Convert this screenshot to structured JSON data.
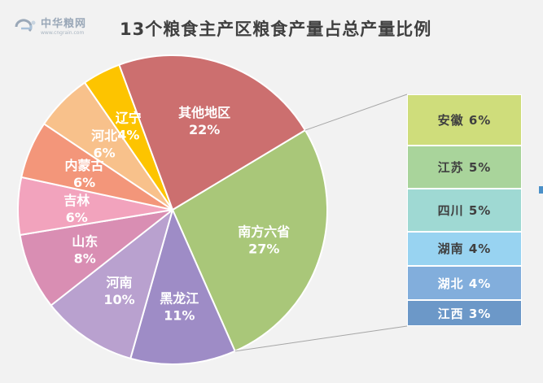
{
  "logo": {
    "name": "中华粮网",
    "url": "www.cngrain.com"
  },
  "chart_data": {
    "type": "pie",
    "title": "13个粮食主产区粮食产量占总产量比例",
    "slices": [
      {
        "label": "南方六省",
        "pct_text": "27%",
        "value": 27,
        "color": "#a9c779"
      },
      {
        "label": "黑龙江",
        "pct_text": "11%",
        "value": 11,
        "color": "#9e8cc6"
      },
      {
        "label": "河南",
        "pct_text": "10%",
        "value": 10,
        "color": "#b9a1cf"
      },
      {
        "label": "山东",
        "pct_text": "8%",
        "value": 8,
        "color": "#d98eb3"
      },
      {
        "label": "吉林",
        "pct_text": "6%",
        "value": 6,
        "color": "#f2a3bd"
      },
      {
        "label": "内蒙古",
        "pct_text": "6%",
        "value": 6,
        "color": "#f3967a"
      },
      {
        "label": "河北",
        "pct_text": "6%",
        "value": 6,
        "color": "#f8c18b"
      },
      {
        "label": "辽宁",
        "pct_text": "4%",
        "value": 4,
        "color": "#fdc400"
      },
      {
        "label": "其他地区",
        "pct_text": "22%",
        "value": 22,
        "color": "#cc6f6f"
      }
    ],
    "breakdown_of": "南方六省",
    "breakdown": [
      {
        "label": "安徽",
        "pct_text": "6%",
        "value": 6,
        "color": "#cfdd7b"
      },
      {
        "label": "江苏",
        "pct_text": "5%",
        "value": 5,
        "color": "#a9d49b"
      },
      {
        "label": "四川",
        "pct_text": "5%",
        "value": 5,
        "color": "#9fd9d3"
      },
      {
        "label": "湖南",
        "pct_text": "4%",
        "value": 4,
        "color": "#98d3f1"
      },
      {
        "label": "湖北",
        "pct_text": "4%",
        "value": 4,
        "color": "#82aedc"
      },
      {
        "label": "江西",
        "pct_text": "3%",
        "value": 3,
        "color": "#6c98c8"
      }
    ]
  }
}
